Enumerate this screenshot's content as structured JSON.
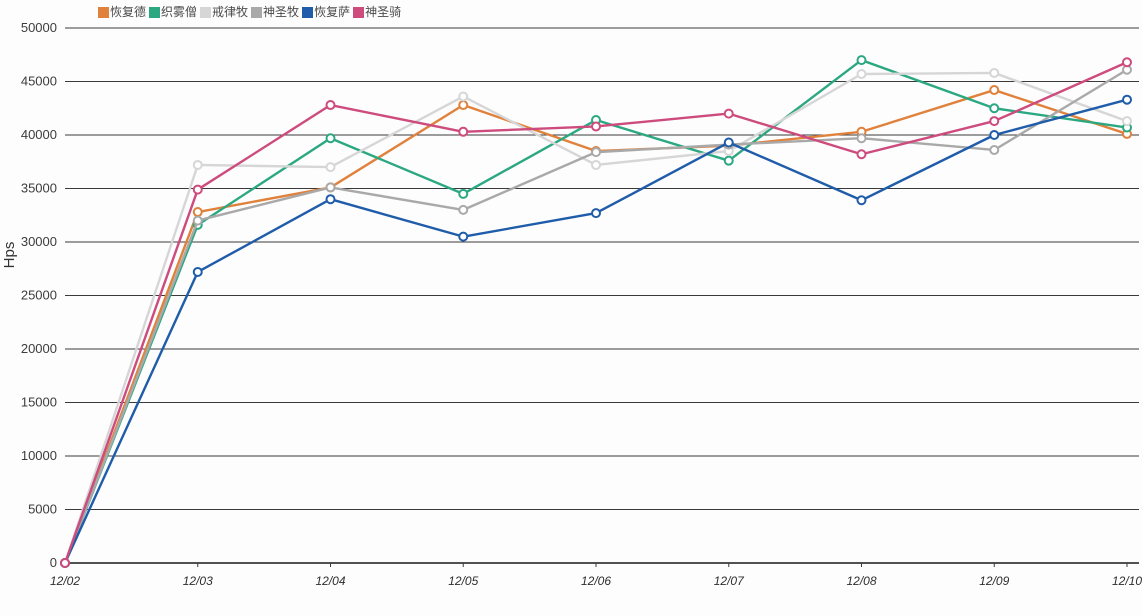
{
  "chart_data": {
    "type": "line",
    "ylabel": "Hps",
    "ylim": [
      0,
      50000
    ],
    "y_ticks": [
      0,
      5000,
      10000,
      15000,
      20000,
      25000,
      30000,
      35000,
      40000,
      45000,
      50000
    ],
    "grid": true,
    "legend_position": "top-left",
    "marker": "hollow-circle",
    "categories": [
      "12/02",
      "12/03",
      "12/04",
      "12/05",
      "12/06",
      "12/07",
      "12/08",
      "12/09",
      "12/10"
    ],
    "series": [
      {
        "name": "恢复德",
        "color": "#E0813C",
        "values": [
          0,
          32800,
          35100,
          42800,
          38500,
          39000,
          40300,
          44200,
          40100
        ]
      },
      {
        "name": "织雾僧",
        "color": "#2BA881",
        "values": [
          0,
          31600,
          39700,
          34500,
          41400,
          37600,
          47000,
          42500,
          40700
        ]
      },
      {
        "name": "戒律牧",
        "color": "#D6D6D6",
        "values": [
          0,
          37200,
          37000,
          43600,
          37200,
          38500,
          45700,
          45800,
          41300
        ]
      },
      {
        "name": "神圣牧",
        "color": "#A9A9A9",
        "values": [
          0,
          32000,
          35100,
          33000,
          38400,
          39100,
          39700,
          38600,
          46100
        ]
      },
      {
        "name": "恢复萨",
        "color": "#1F5CA9",
        "values": [
          0,
          27200,
          34000,
          30500,
          32700,
          39300,
          33900,
          40000,
          43300
        ]
      },
      {
        "name": "神圣骑",
        "color": "#CD4B7D",
        "values": [
          0,
          34900,
          42800,
          40300,
          40800,
          42000,
          38200,
          41300,
          46800
        ]
      }
    ],
    "colors": {
      "gridline": "#3a3a3a",
      "axis_text": "#3c3c3c",
      "background": "#fdfdfd"
    }
  }
}
